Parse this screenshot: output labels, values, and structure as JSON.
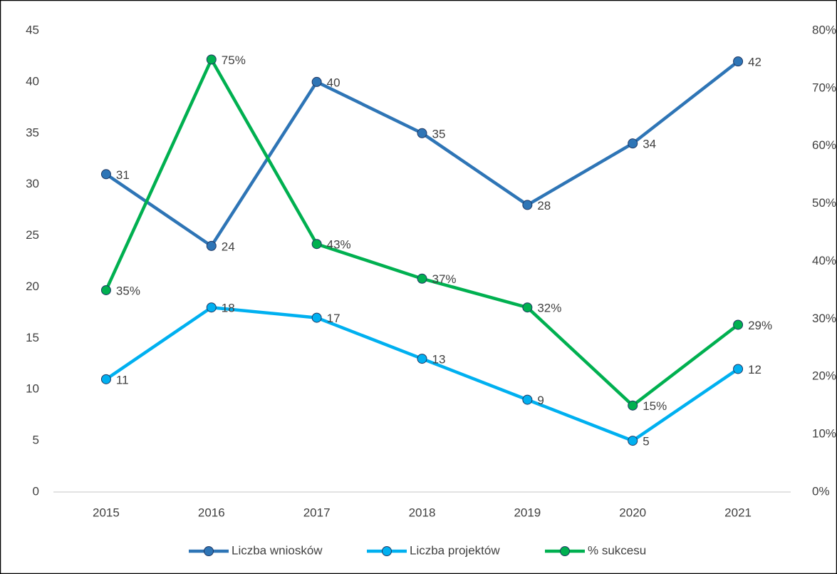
{
  "chart_data": {
    "type": "line",
    "categories": [
      "2015",
      "2016",
      "2017",
      "2018",
      "2019",
      "2020",
      "2021"
    ],
    "series": [
      {
        "name": "Liczba wniosków",
        "color": "#2e75b6",
        "values": [
          31,
          24,
          40,
          35,
          28,
          34,
          42
        ]
      },
      {
        "name": "Liczba projektów",
        "color": "#00b0f0",
        "values": [
          11,
          18,
          17,
          13,
          9,
          5,
          12
        ]
      },
      {
        "name": "% sukcesu",
        "color": "#00b050",
        "axis": "y2",
        "values": [
          35,
          75,
          43,
          37,
          32,
          15,
          29
        ],
        "value_labels": [
          "35%",
          "75%",
          "43%",
          "37%",
          "32%",
          "15%",
          "29%"
        ]
      }
    ],
    "ylim": [
      0,
      45
    ],
    "yticks": [
      0,
      5,
      10,
      15,
      20,
      25,
      30,
      35,
      40,
      45
    ],
    "y2lim": [
      0,
      80
    ],
    "y2ticks": [
      {
        "value": 0,
        "label": "0%"
      },
      {
        "value": 10,
        "label": "10%"
      },
      {
        "value": 20,
        "label": "20%"
      },
      {
        "value": 30,
        "label": "30%"
      },
      {
        "value": 40,
        "label": "40%"
      },
      {
        "value": 50,
        "label": "50%"
      },
      {
        "value": 60,
        "label": "60%"
      },
      {
        "value": 70,
        "label": "70%"
      },
      {
        "value": 80,
        "label": "80%"
      }
    ],
    "grid": false,
    "legend": "bottom"
  }
}
